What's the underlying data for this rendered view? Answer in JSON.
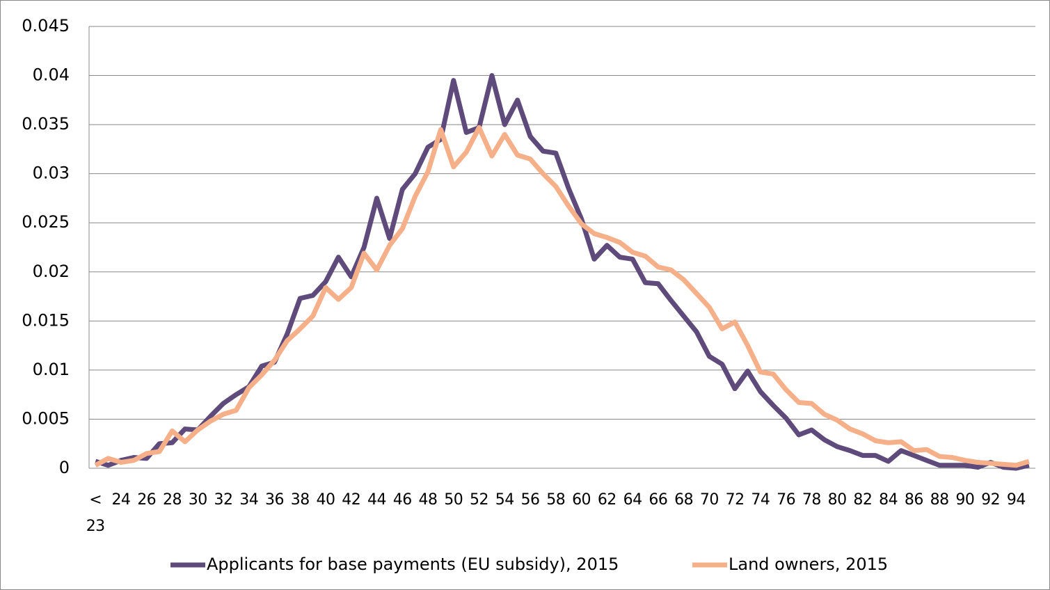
{
  "chart_data": {
    "type": "line",
    "categories": [
      "< 23",
      null,
      "24",
      null,
      "26",
      null,
      "28",
      null,
      "30",
      null,
      "32",
      null,
      "34",
      null,
      "36",
      null,
      "38",
      null,
      "40",
      null,
      "42",
      null,
      "44",
      null,
      "46",
      null,
      "48",
      null,
      "50",
      null,
      "52",
      null,
      "54",
      null,
      "56",
      null,
      "58",
      null,
      "60",
      null,
      "62",
      null,
      "64",
      null,
      "66",
      null,
      "68",
      null,
      "70",
      null,
      "72",
      null,
      "74",
      null,
      "76",
      null,
      "78",
      null,
      "80",
      null,
      "82",
      null,
      "84",
      null,
      "86",
      null,
      "88",
      null,
      "90",
      null,
      "92",
      null,
      "94",
      null
    ],
    "series": [
      {
        "name": "Applicants for base payments (EU subsidy), 2015",
        "color": "#5f4b7b",
        "values": [
          0.0007,
          0.0003,
          0.0008,
          0.0011,
          0.001,
          0.0025,
          0.0026,
          0.004,
          0.0039,
          0.0053,
          0.0066,
          0.0075,
          0.0083,
          0.0104,
          0.0108,
          0.0137,
          0.0173,
          0.0176,
          0.019,
          0.0215,
          0.0195,
          0.0225,
          0.0275,
          0.0234,
          0.0284,
          0.03,
          0.0327,
          0.0335,
          0.0395,
          0.0342,
          0.0347,
          0.04,
          0.035,
          0.0375,
          0.0338,
          0.0323,
          0.0321,
          0.0285,
          0.0254,
          0.0213,
          0.0227,
          0.0215,
          0.0213,
          0.0189,
          0.0188,
          0.0171,
          0.0155,
          0.0139,
          0.0114,
          0.0106,
          0.0081,
          0.0099,
          0.0078,
          0.0064,
          0.0051,
          0.0034,
          0.0039,
          0.0029,
          0.0022,
          0.0018,
          0.0013,
          0.0013,
          0.0007,
          0.0018,
          0.0013,
          0.0008,
          0.0003,
          0.0003,
          0.0003,
          0.0001,
          0.0006,
          0.0001,
          0,
          0.0003
        ]
      },
      {
        "name": "Land owners, 2015",
        "color": "#f5b08a",
        "values": [
          0.0003,
          0.001,
          0.0006,
          0.0008,
          0.0015,
          0.0017,
          0.0038,
          0.0027,
          0.0039,
          0.0048,
          0.0055,
          0.0059,
          0.0082,
          0.0095,
          0.011,
          0.013,
          0.0142,
          0.0155,
          0.0184,
          0.0172,
          0.0184,
          0.0219,
          0.0202,
          0.0227,
          0.0244,
          0.0277,
          0.0302,
          0.0345,
          0.0307,
          0.0322,
          0.0347,
          0.0318,
          0.034,
          0.0319,
          0.0315,
          0.03,
          0.0287,
          0.0267,
          0.0249,
          0.0239,
          0.0235,
          0.023,
          0.022,
          0.0216,
          0.0205,
          0.0202,
          0.0192,
          0.0178,
          0.0164,
          0.0142,
          0.0149,
          0.0125,
          0.0098,
          0.0096,
          0.008,
          0.0067,
          0.0066,
          0.0055,
          0.0049,
          0.004,
          0.0035,
          0.0028,
          0.0026,
          0.0027,
          0.0018,
          0.0019,
          0.0012,
          0.0011,
          0.0008,
          0.0006,
          0.0005,
          0.0004,
          0.0003,
          0.0007
        ]
      }
    ],
    "ylim": [
      0,
      0.045
    ],
    "yticks": [
      0,
      0.005,
      0.01,
      0.015,
      0.02,
      0.025,
      0.03,
      0.035,
      0.04,
      0.045
    ],
    "grid": true,
    "legend": "bottom"
  }
}
